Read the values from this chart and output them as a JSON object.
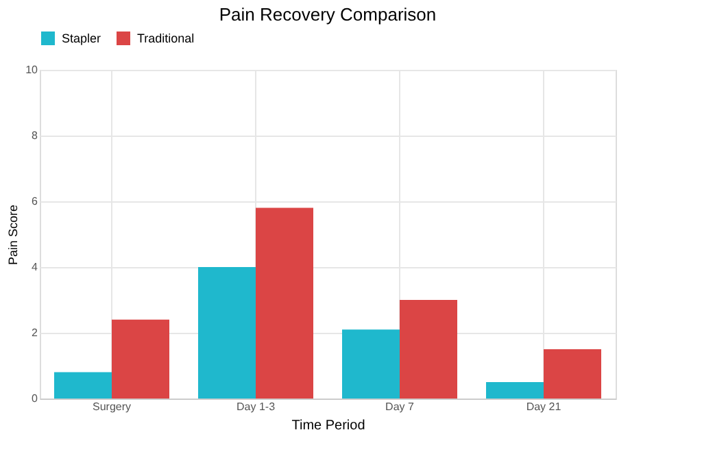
{
  "chart_data": {
    "type": "bar",
    "title": "Pain Recovery Comparison",
    "xlabel": "Time Period",
    "ylabel": "Pain Score",
    "categories": [
      "Surgery",
      "Day 1-3",
      "Day 7",
      "Day 21"
    ],
    "series": [
      {
        "name": "Stapler",
        "color": "#1fb8cd",
        "values": [
          0.8,
          4.0,
          2.1,
          0.5
        ]
      },
      {
        "name": "Traditional",
        "color": "#db4545",
        "values": [
          2.4,
          5.8,
          3.0,
          1.5
        ]
      }
    ],
    "ylim": [
      0,
      10
    ],
    "yticks": [
      0,
      2,
      4,
      6,
      8,
      10
    ],
    "grid": true,
    "legend": "top"
  }
}
